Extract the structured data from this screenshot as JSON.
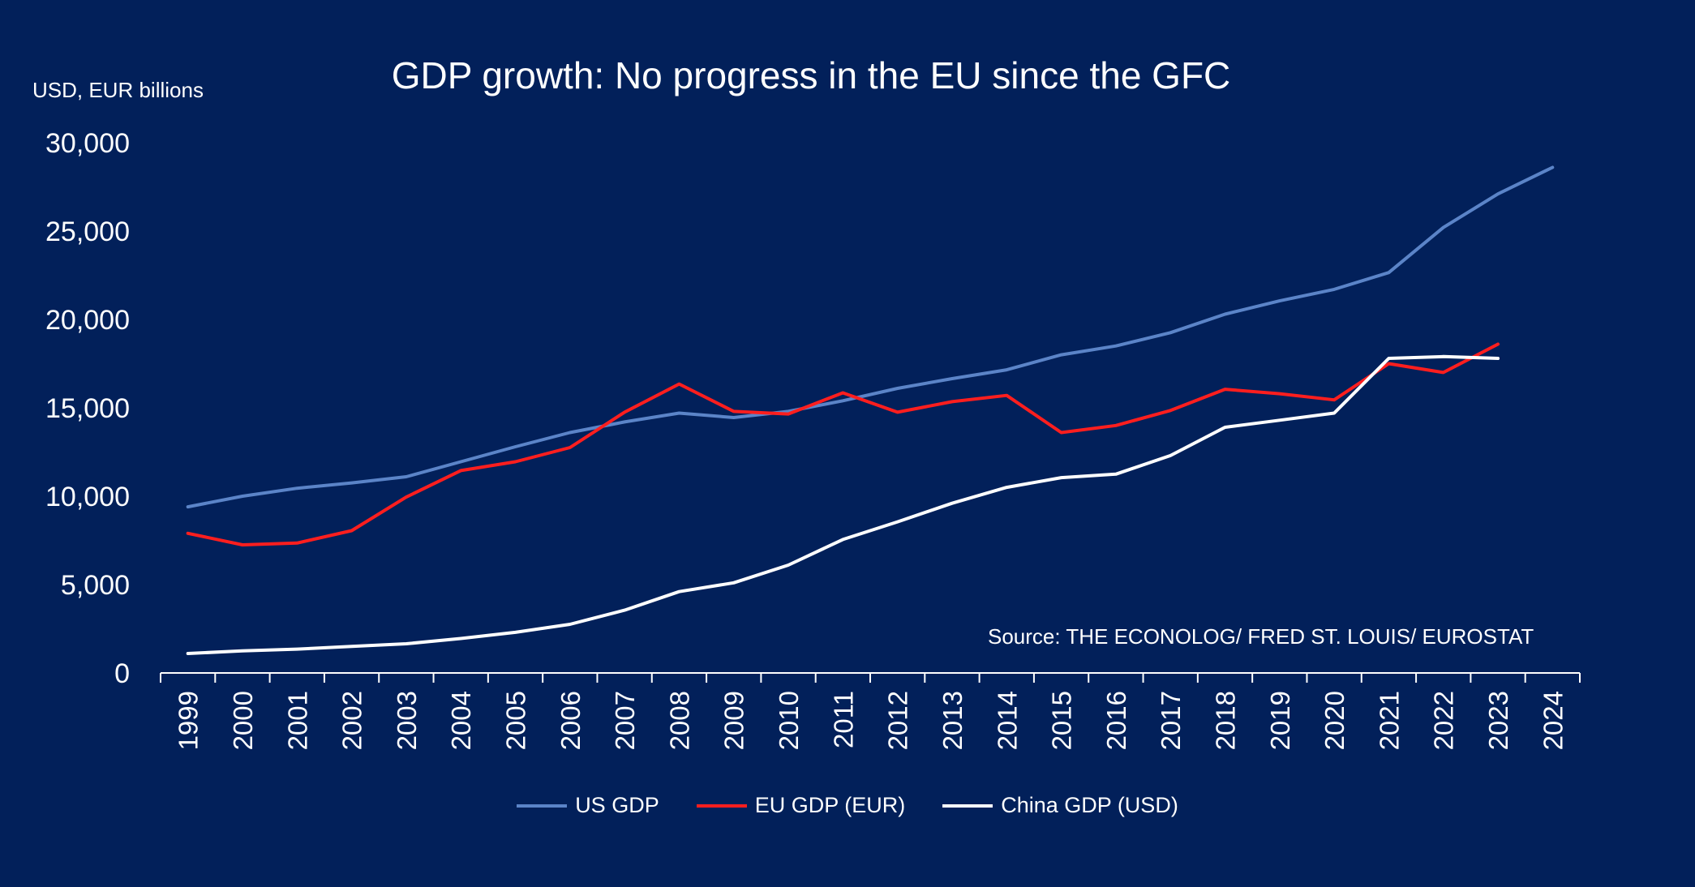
{
  "chart_data": {
    "type": "line",
    "title": "GDP growth: No progress in the EU since the GFC",
    "ylabel": "USD, EUR billions",
    "source": "Source: THE ECONOLOG/ FRED ST. LOUIS/ EUROSTAT",
    "xlabel": "",
    "ylim": [
      0,
      30000
    ],
    "yticks": [
      "0",
      "5,000",
      "10,000",
      "15,000",
      "20,000",
      "25,000",
      "30,000"
    ],
    "ytick_values": [
      0,
      5000,
      10000,
      15000,
      20000,
      25000,
      30000
    ],
    "categories": [
      "1999",
      "2000",
      "2001",
      "2002",
      "2003",
      "2004",
      "2005",
      "2006",
      "2007",
      "2008",
      "2009",
      "2010",
      "2011",
      "2012",
      "2013",
      "2014",
      "2015",
      "2016",
      "2017",
      "2018",
      "2019",
      "2020",
      "2021",
      "2022",
      "2023",
      "2024"
    ],
    "grid": false,
    "legend_position": "bottom",
    "series": [
      {
        "name": "US GDP",
        "color": "#5b84c8",
        "values": [
          9400,
          10000,
          10450,
          10750,
          11100,
          11950,
          12800,
          13600,
          14200,
          14700,
          14450,
          14800,
          15400,
          16100,
          16650,
          17150,
          18000,
          18500,
          19250,
          20300,
          21050,
          21700,
          22650,
          25200,
          27100,
          28600
        ]
      },
      {
        "name": "EU GDP (EUR)",
        "color": "#ff1e1e",
        "values": [
          7900,
          7250,
          7350,
          8050,
          9950,
          11450,
          11950,
          12750,
          14750,
          16350,
          14800,
          14650,
          15850,
          14750,
          15350,
          15700,
          13600,
          14000,
          14850,
          16050,
          15800,
          15450,
          17500,
          17000,
          18600,
          null
        ]
      },
      {
        "name": "China GDP (USD)",
        "color": "#ffffff",
        "values": [
          1100,
          1250,
          1350,
          1500,
          1650,
          1950,
          2300,
          2750,
          3550,
          4600,
          5100,
          6100,
          7550,
          8550,
          9600,
          10500,
          11050,
          11250,
          12300,
          13900,
          14300,
          14700,
          17800,
          17900,
          17800,
          null
        ]
      }
    ]
  }
}
